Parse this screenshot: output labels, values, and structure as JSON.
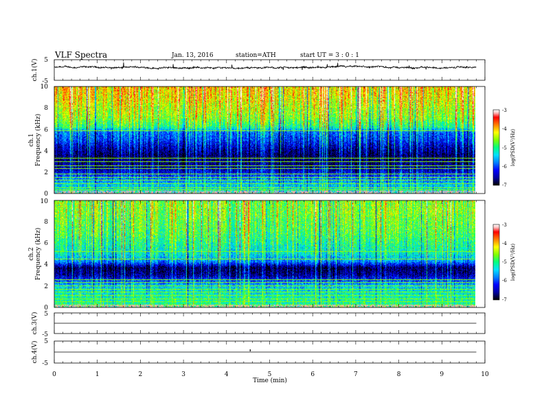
{
  "header": {
    "title": "VLF  Spectra",
    "date": "Jan. 13, 2016",
    "station": "station=ATH",
    "start": "start  UT  =   3  : 0  : 1"
  },
  "chart_data": [
    {
      "type": "line",
      "id": "ch1-waveform",
      "ylabel": "ch.1(V)",
      "yticks": [
        "5",
        "-5"
      ],
      "ylim": [
        -5,
        5
      ],
      "xlim": [
        0,
        10
      ],
      "data_end_min": 9.8,
      "baseline_v": 1.2
    },
    {
      "type": "heatmap",
      "id": "ch1-spectrogram",
      "ylabel": [
        "ch.1",
        "Frequency  (kHz)"
      ],
      "ylim": [
        0,
        10
      ],
      "yticks": [
        "0",
        "2",
        "4",
        "6",
        "8",
        "10"
      ],
      "xlim": [
        0,
        10
      ],
      "data_end_min": 9.8,
      "level_profile": [
        {
          "f": 0.0,
          "lvl": 0.4
        },
        {
          "f": 0.8,
          "lvl": 0.35
        },
        {
          "f": 1.5,
          "lvl": 0.25
        },
        {
          "f": 2.0,
          "lvl": 0.15
        },
        {
          "f": 2.8,
          "lvl": 0.08
        },
        {
          "f": 3.5,
          "lvl": 0.06
        },
        {
          "f": 4.2,
          "lvl": 0.12
        },
        {
          "f": 5.0,
          "lvl": 0.22
        },
        {
          "f": 5.8,
          "lvl": 0.28
        },
        {
          "f": 6.2,
          "lvl": 0.45
        },
        {
          "f": 7.0,
          "lvl": 0.55
        },
        {
          "f": 8.0,
          "lvl": 0.6
        },
        {
          "f": 9.0,
          "lvl": 0.65
        },
        {
          "f": 10.0,
          "lvl": 0.68
        }
      ],
      "tone_lines_khz": [
        0.3,
        0.5,
        0.9,
        1.2,
        1.5,
        1.8,
        2.3,
        2.6,
        3.0,
        3.3,
        5.9
      ],
      "colorbar": {
        "label": "log(PSD(V²/Hz)",
        "ticks": [
          "-3",
          "-4",
          "-5",
          "-6",
          "-7"
        ],
        "range": [
          -7,
          -3
        ]
      }
    },
    {
      "type": "heatmap",
      "id": "ch2-spectrogram",
      "ylabel": [
        "ch.2",
        "Frequency  (kHz)"
      ],
      "ylim": [
        0,
        10
      ],
      "yticks": [
        "0",
        "2",
        "4",
        "6",
        "8",
        "10"
      ],
      "xlim": [
        0,
        10
      ],
      "data_end_min": 9.8,
      "level_profile": [
        {
          "f": 0.0,
          "lvl": 0.45
        },
        {
          "f": 1.0,
          "lvl": 0.42
        },
        {
          "f": 2.0,
          "lvl": 0.35
        },
        {
          "f": 3.0,
          "lvl": 0.1
        },
        {
          "f": 3.7,
          "lvl": 0.05
        },
        {
          "f": 4.3,
          "lvl": 0.3
        },
        {
          "f": 5.0,
          "lvl": 0.4
        },
        {
          "f": 6.0,
          "lvl": 0.45
        },
        {
          "f": 7.0,
          "lvl": 0.5
        },
        {
          "f": 8.0,
          "lvl": 0.52
        },
        {
          "f": 9.0,
          "lvl": 0.55
        },
        {
          "f": 10.0,
          "lvl": 0.55
        }
      ],
      "tone_lines_khz": [
        0.2,
        0.5,
        0.8,
        1.1,
        1.4,
        1.7,
        2.0,
        2.3,
        2.6,
        4.5,
        5.2
      ],
      "colorbar": {
        "label": "log(PSD(V²/Hz)",
        "ticks": [
          "-3",
          "-4",
          "-5",
          "-6",
          "-7"
        ],
        "range": [
          -7,
          -3
        ]
      }
    },
    {
      "type": "line",
      "id": "ch3-waveform",
      "ylabel": "ch.3(V)",
      "yticks": [
        "5",
        "-5"
      ],
      "ylim": [
        -5,
        5
      ],
      "xlim": [
        0,
        10
      ],
      "data_end_min": 9.8,
      "baseline_v": 0
    },
    {
      "type": "line",
      "id": "ch4-waveform",
      "ylabel": "ch.4(V)",
      "yticks": [
        "5",
        "-5"
      ],
      "ylim": [
        -5,
        5
      ],
      "xlim": [
        0,
        10
      ],
      "data_end_min": 9.8,
      "baseline_v": 0,
      "spike_at_min": 4.55
    }
  ],
  "xaxis": {
    "label": "Time  (min)",
    "ticks": [
      "0",
      "1",
      "2",
      "3",
      "4",
      "5",
      "6",
      "7",
      "8",
      "9",
      "10"
    ],
    "range": [
      0,
      10
    ]
  },
  "colors": {
    "trace": "#000000",
    "colormap": [
      "#000000",
      "#0000a0",
      "#0000ff",
      "#0080ff",
      "#00e0ff",
      "#00ff80",
      "#80ff00",
      "#ffff00",
      "#ff8000",
      "#ff0000",
      "#ffc0c0",
      "#ffffff"
    ]
  }
}
